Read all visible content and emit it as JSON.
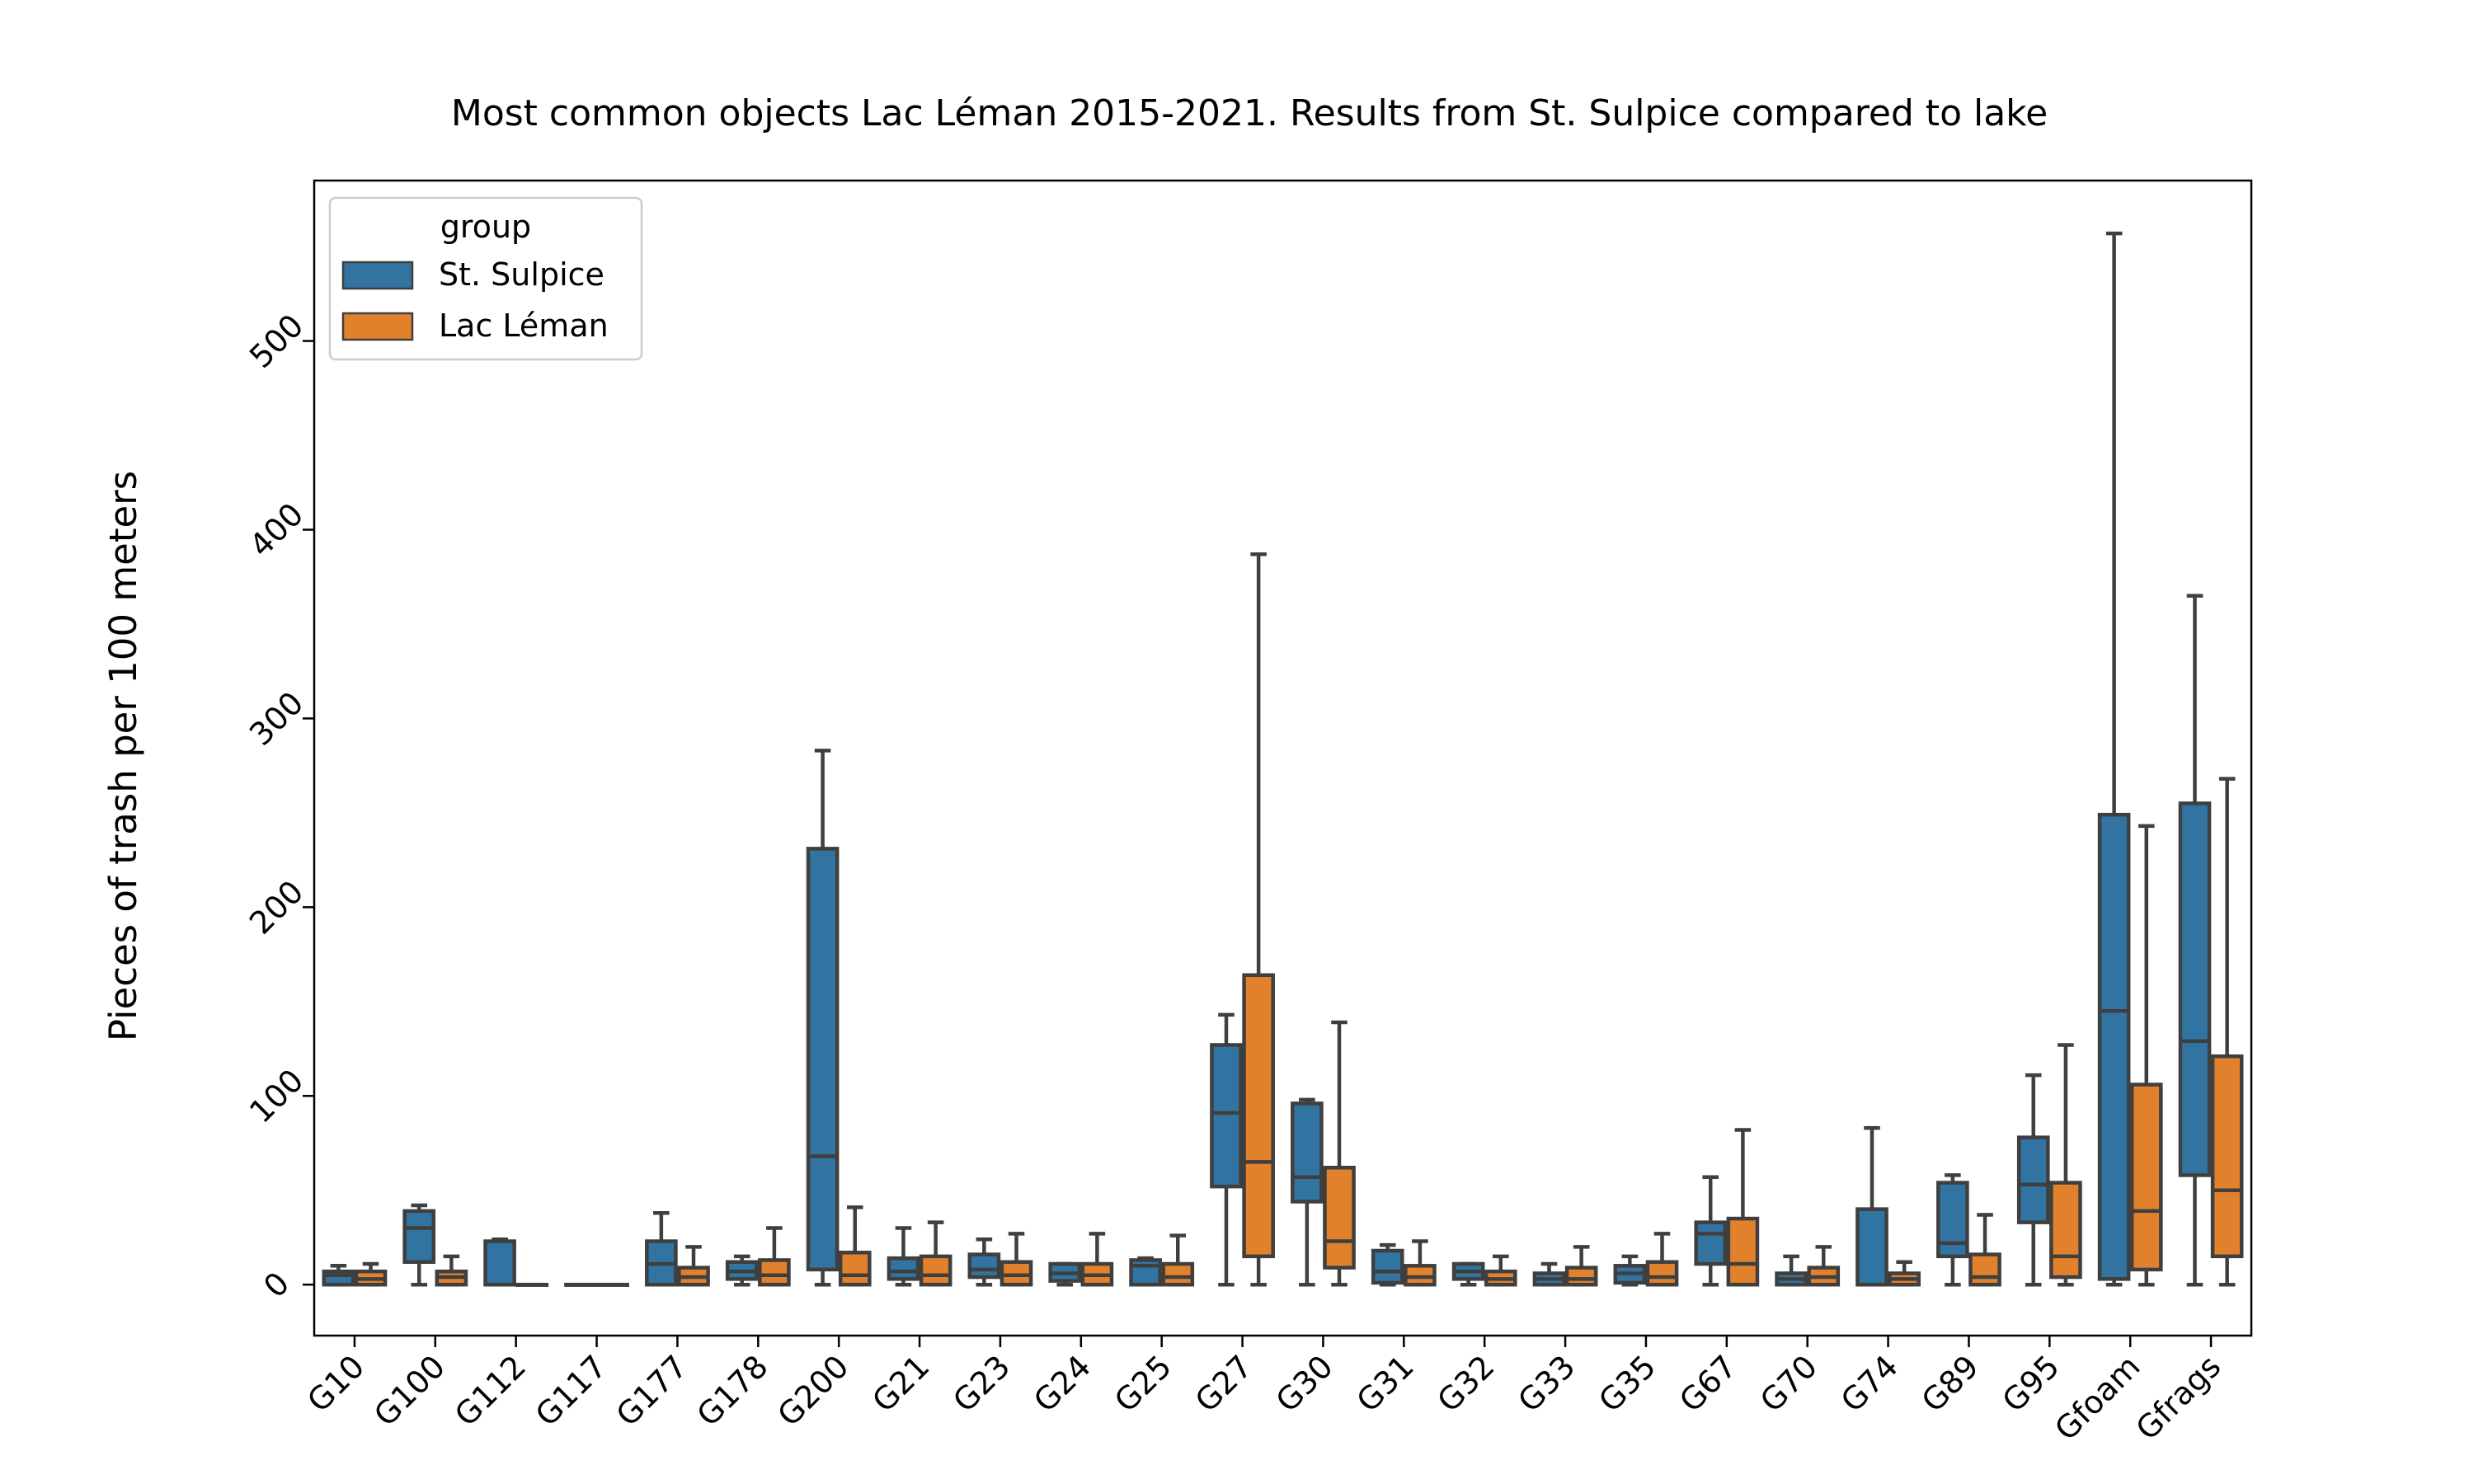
{
  "chart_data": {
    "type": "box",
    "title": "Most common objects Lac Léman 2015-2021. Results from St. Sulpice compared to lake",
    "xlabel": "",
    "ylabel": "Pieces of trash per 100 meters",
    "ylim": [
      -27,
      585
    ],
    "yticks": [
      0,
      100,
      200,
      300,
      400,
      500
    ],
    "legend": {
      "title": "group",
      "position": "top-left"
    },
    "categories": [
      "G10",
      "G100",
      "G112",
      "G117",
      "G177",
      "G178",
      "G200",
      "G21",
      "G23",
      "G24",
      "G25",
      "G27",
      "G30",
      "G31",
      "G32",
      "G33",
      "G35",
      "G67",
      "G70",
      "G74",
      "G89",
      "G95",
      "Gfoam",
      "Gfrags"
    ],
    "series": [
      {
        "name": "St. Sulpice",
        "color": "#3274a1",
        "boxes": [
          {
            "whislo": 0,
            "q1": 0,
            "med": 5,
            "q3": 7,
            "whishi": 10
          },
          {
            "whislo": 0,
            "q1": 12,
            "med": 30,
            "q3": 39,
            "whishi": 42
          },
          {
            "whislo": 0,
            "q1": 0,
            "med": 0,
            "q3": 23,
            "whishi": 24
          },
          {
            "whislo": 0,
            "q1": 0,
            "med": 0,
            "q3": 0,
            "whishi": 0
          },
          {
            "whislo": 0,
            "q1": 0,
            "med": 11,
            "q3": 23,
            "whishi": 38
          },
          {
            "whislo": 0,
            "q1": 3,
            "med": 7,
            "q3": 12,
            "whishi": 15
          },
          {
            "whislo": 0,
            "q1": 8,
            "med": 68,
            "q3": 231,
            "whishi": 283
          },
          {
            "whislo": 0,
            "q1": 3,
            "med": 7,
            "q3": 14,
            "whishi": 30
          },
          {
            "whislo": 0,
            "q1": 4,
            "med": 8,
            "q3": 16,
            "whishi": 24
          },
          {
            "whislo": 0,
            "q1": 2,
            "med": 6,
            "q3": 11,
            "whishi": 11
          },
          {
            "whislo": 0,
            "q1": 0,
            "med": 10,
            "q3": 13,
            "whishi": 14
          },
          {
            "whislo": 0,
            "q1": 52,
            "med": 91,
            "q3": 127,
            "whishi": 143
          },
          {
            "whislo": 0,
            "q1": 44,
            "med": 57,
            "q3": 96,
            "whishi": 98
          },
          {
            "whislo": 0,
            "q1": 1,
            "med": 7,
            "q3": 18,
            "whishi": 21
          },
          {
            "whislo": 0,
            "q1": 3,
            "med": 7,
            "q3": 11,
            "whishi": 11
          },
          {
            "whislo": 0,
            "q1": 0,
            "med": 3,
            "q3": 6,
            "whishi": 11
          },
          {
            "whislo": 0,
            "q1": 1,
            "med": 6,
            "q3": 10,
            "whishi": 15
          },
          {
            "whislo": 0,
            "q1": 11,
            "med": 27,
            "q3": 33,
            "whishi": 57
          },
          {
            "whislo": 0,
            "q1": 0,
            "med": 3,
            "q3": 6,
            "whishi": 15
          },
          {
            "whislo": 0,
            "q1": 0,
            "med": 0,
            "q3": 40,
            "whishi": 83
          },
          {
            "whislo": 0,
            "q1": 15,
            "med": 22,
            "q3": 54,
            "whishi": 58
          },
          {
            "whislo": 0,
            "q1": 33,
            "med": 53,
            "q3": 78,
            "whishi": 111
          },
          {
            "whislo": 0,
            "q1": 3,
            "med": 145,
            "q3": 249,
            "whishi": 557
          },
          {
            "whislo": 0,
            "q1": 58,
            "med": 129,
            "q3": 255,
            "whishi": 365
          }
        ]
      },
      {
        "name": "Lac Léman",
        "color": "#e1812c",
        "boxes": [
          {
            "whislo": 0,
            "q1": 0,
            "med": 3,
            "q3": 7,
            "whishi": 11
          },
          {
            "whislo": 0,
            "q1": 0,
            "med": 4,
            "q3": 7,
            "whishi": 15
          },
          {
            "whislo": 0,
            "q1": 0,
            "med": 0,
            "q3": 0,
            "whishi": 0
          },
          {
            "whislo": 0,
            "q1": 0,
            "med": 0,
            "q3": 0,
            "whishi": 0
          },
          {
            "whislo": 0,
            "q1": 0,
            "med": 4,
            "q3": 9,
            "whishi": 20
          },
          {
            "whislo": 0,
            "q1": 0,
            "med": 5,
            "q3": 13,
            "whishi": 30
          },
          {
            "whislo": 0,
            "q1": 0,
            "med": 5,
            "q3": 17,
            "whishi": 41
          },
          {
            "whislo": 0,
            "q1": 0,
            "med": 5,
            "q3": 15,
            "whishi": 33
          },
          {
            "whislo": 0,
            "q1": 0,
            "med": 5,
            "q3": 12,
            "whishi": 27
          },
          {
            "whislo": 0,
            "q1": 0,
            "med": 5,
            "q3": 11,
            "whishi": 27
          },
          {
            "whislo": 0,
            "q1": 0,
            "med": 4,
            "q3": 11,
            "whishi": 26
          },
          {
            "whislo": 0,
            "q1": 15,
            "med": 65,
            "q3": 164,
            "whishi": 387
          },
          {
            "whislo": 0,
            "q1": 9,
            "med": 23,
            "q3": 62,
            "whishi": 139
          },
          {
            "whislo": 0,
            "q1": 0,
            "med": 4,
            "q3": 10,
            "whishi": 23
          },
          {
            "whislo": 0,
            "q1": 0,
            "med": 3,
            "q3": 7,
            "whishi": 15
          },
          {
            "whislo": 0,
            "q1": 0,
            "med": 3,
            "q3": 9,
            "whishi": 20
          },
          {
            "whislo": 0,
            "q1": 0,
            "med": 4,
            "q3": 12,
            "whishi": 27
          },
          {
            "whislo": 0,
            "q1": 0,
            "med": 11,
            "q3": 35,
            "whishi": 82
          },
          {
            "whislo": 0,
            "q1": 0,
            "med": 4,
            "q3": 9,
            "whishi": 20
          },
          {
            "whislo": 0,
            "q1": 0,
            "med": 3,
            "q3": 6,
            "whishi": 12
          },
          {
            "whislo": 0,
            "q1": 0,
            "med": 4,
            "q3": 16,
            "whishi": 37
          },
          {
            "whislo": 0,
            "q1": 4,
            "med": 15,
            "q3": 54,
            "whishi": 127
          },
          {
            "whislo": 0,
            "q1": 8,
            "med": 39,
            "q3": 106,
            "whishi": 243
          },
          {
            "whislo": 0,
            "q1": 15,
            "med": 50,
            "q3": 121,
            "whishi": 268
          }
        ]
      }
    ]
  }
}
